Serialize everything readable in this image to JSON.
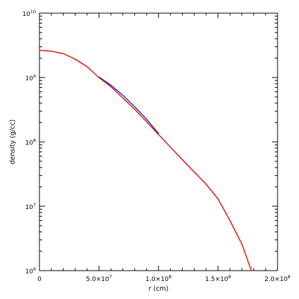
{
  "chart_data": {
    "type": "line",
    "xlabel": "r (cm)",
    "ylabel": "density (g/cc)",
    "xlim": [
      0,
      200000000
    ],
    "ylim": [
      1000000,
      10000000000
    ],
    "yscale": "log",
    "grid": false,
    "x_ticks": [
      {
        "value": 0,
        "mantissa": "0",
        "exponent": ""
      },
      {
        "value": 50000000,
        "mantissa": "5.0×10",
        "exponent": "7"
      },
      {
        "value": 100000000,
        "mantissa": "1.0×10",
        "exponent": "8"
      },
      {
        "value": 150000000,
        "mantissa": "1.5×10",
        "exponent": "8"
      },
      {
        "value": 200000000,
        "mantissa": "2.0×10",
        "exponent": "8"
      }
    ],
    "y_ticks": [
      {
        "value": 1000000,
        "mantissa": "10",
        "exponent": "6"
      },
      {
        "value": 10000000,
        "mantissa": "10",
        "exponent": "7"
      },
      {
        "value": 100000000,
        "mantissa": "10",
        "exponent": "8"
      },
      {
        "value": 1000000000,
        "mantissa": "10",
        "exponent": "9"
      },
      {
        "value": 10000000000,
        "mantissa": "10",
        "exponent": "10"
      }
    ],
    "series": [
      {
        "color": "#ee1111",
        "x": [
          0,
          10000000,
          20000000,
          30000000,
          40000000,
          50000000,
          60000000,
          70000000,
          80000000,
          90000000,
          100000000,
          110000000,
          120000000,
          130000000,
          140000000,
          150000000,
          160000000,
          170000000,
          178000000
        ],
        "y": [
          2650000000,
          2560000000,
          2350000000,
          1930000000,
          1470000000,
          1000000000,
          720000000,
          480000000,
          320000000,
          205000000,
          130000000,
          83000000,
          53000000,
          34000000,
          22000000,
          13000000,
          6000000,
          2600000,
          1000000
        ]
      },
      {
        "color": "#2222cc",
        "x": [
          50000000,
          60000000,
          70000000,
          80000000,
          90000000,
          100000000
        ],
        "y": [
          1020000000,
          760000000,
          530000000,
          350000000,
          225000000,
          135000000
        ]
      }
    ]
  }
}
